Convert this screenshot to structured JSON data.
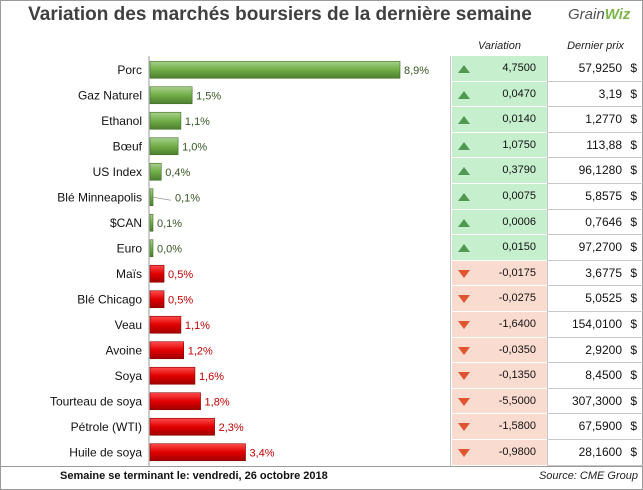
{
  "title": "Variation des marchés boursiers de la dernière semaine",
  "logo": {
    "text_part1": "Grain",
    "text_part2": "Wiz"
  },
  "table_headers": {
    "variation": "Variation",
    "dernier_prix": "Dernier prix"
  },
  "footer": {
    "left": "Semaine se terminant le:  vendredi, 26 octobre 2018",
    "right": "Source: CME Group"
  },
  "colors": {
    "up_bar": "#70ad47",
    "down_bar": "#e00000",
    "up_label": "#375623",
    "down_label": "#c00000"
  },
  "chart_data": {
    "type": "bar",
    "orientation": "horizontal",
    "categories": [
      "Porc",
      "Gaz Naturel",
      "Ethanol",
      "Bœuf",
      "US Index",
      "Blé Minneapolis",
      "$CAN",
      "Euro",
      "Maïs",
      "Blé Chicago",
      "Veau",
      "Avoine",
      "Soya",
      "Tourteau de soya",
      "Pétrole (WTI)",
      "Huile de soya"
    ],
    "values": [
      8.9,
      1.5,
      1.1,
      1.0,
      0.4,
      0.1,
      0.1,
      0.0,
      -0.5,
      -0.5,
      -1.1,
      -1.2,
      -1.6,
      -1.8,
      -2.3,
      -3.4
    ],
    "value_labels": [
      "8,9%",
      "1,5%",
      "1,1%",
      "1,0%",
      "0,4%",
      "0,1%",
      "0,1%",
      "0,0%",
      "0,5%",
      "0,5%",
      "1,1%",
      "1,2%",
      "1,6%",
      "1,8%",
      "2,3%",
      "3,4%"
    ],
    "variation": [
      "4,7500",
      "0,0470",
      "0,0140",
      "1,0750",
      "0,3790",
      "0,0075",
      "0,0006",
      "0,0150",
      "-0,0175",
      "-0,0275",
      "-1,6400",
      "-0,0350",
      "-0,1350",
      "-5,5000",
      "-1,5800",
      "-0,9800"
    ],
    "dernier_prix": [
      "57,9250",
      "3,19",
      "1,2770",
      "113,88",
      "96,1280",
      "5,8575",
      "0,7646",
      "97,2700",
      "3,6775",
      "5,0525",
      "154,0100",
      "2,9200",
      "8,4500",
      "307,3000",
      "67,5900",
      "28,1600"
    ],
    "currency": "$"
  }
}
